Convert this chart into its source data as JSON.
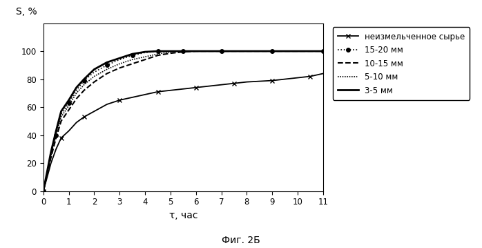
{
  "xlabel": "τ, час",
  "ylabel": "S, %",
  "caption": "Фиг. 2Б",
  "xlim": [
    0,
    11
  ],
  "ylim": [
    0,
    120
  ],
  "yticks": [
    0,
    20,
    40,
    60,
    80,
    100
  ],
  "xticks": [
    0,
    1,
    2,
    3,
    4,
    5,
    6,
    7,
    8,
    9,
    10,
    11
  ],
  "neizm_x": [
    0,
    0.3,
    0.5,
    0.7,
    1.0,
    1.3,
    1.6,
    2.0,
    2.5,
    3.0,
    3.5,
    4.0,
    4.5,
    5.0,
    5.5,
    6.0,
    6.5,
    7.0,
    7.5,
    8.0,
    8.5,
    9.0,
    9.5,
    10.0,
    10.5,
    11.0
  ],
  "neizm_y": [
    0,
    20,
    30,
    38,
    43,
    49,
    53,
    57,
    62,
    65,
    67,
    69,
    71,
    72,
    73,
    74,
    75,
    76,
    77,
    78,
    78.5,
    79,
    80,
    81,
    82,
    84
  ],
  "mm1520_x": [
    0,
    0.3,
    0.5,
    0.7,
    1.0,
    1.3,
    1.6,
    2.0,
    2.5,
    3.0,
    3.5,
    4.0,
    4.5,
    5.0,
    5.5,
    6.0,
    7.0,
    8.0,
    9.0,
    10.0,
    11.0
  ],
  "mm1520_y": [
    0,
    25,
    40,
    55,
    63,
    72,
    79,
    85,
    90,
    94,
    97,
    99,
    100,
    100,
    100,
    100,
    100,
    100,
    100,
    100,
    100
  ],
  "mm1015_x": [
    0,
    0.3,
    0.5,
    0.7,
    1.0,
    1.3,
    1.6,
    2.0,
    2.5,
    3.0,
    3.5,
    4.0,
    4.5,
    5.0,
    5.5,
    6.0,
    7.0,
    8.0,
    9.0,
    10.0,
    11.0
  ],
  "mm1015_y": [
    0,
    24,
    38,
    50,
    58,
    66,
    72,
    78,
    84,
    88,
    91,
    94,
    97,
    98.5,
    99.5,
    100,
    100,
    100,
    100,
    100,
    100
  ],
  "mm510_x": [
    0,
    0.3,
    0.5,
    0.7,
    1.0,
    1.3,
    1.6,
    2.0,
    2.5,
    3.0,
    3.5,
    4.0,
    4.5,
    5.0,
    5.5,
    6.0,
    7.0,
    8.0,
    9.0,
    10.0,
    11.0
  ],
  "mm510_y": [
    0,
    26,
    41,
    53,
    61,
    70,
    76,
    82,
    87,
    91,
    94,
    96,
    98,
    99.5,
    100,
    100,
    100,
    100,
    100,
    100,
    100
  ],
  "mm35_x": [
    0,
    0.3,
    0.5,
    0.7,
    1.0,
    1.3,
    1.6,
    2.0,
    2.5,
    3.0,
    3.5,
    4.0,
    4.5,
    5.0,
    6.0,
    7.0,
    8.0,
    9.0,
    10.0,
    11.0
  ],
  "mm35_y": [
    0,
    28,
    43,
    57,
    65,
    74,
    80,
    87,
    92,
    95,
    98,
    99.5,
    100,
    100,
    100,
    100,
    100,
    100,
    100,
    100
  ],
  "label_neizm": "неизмельченное сырье",
  "label_1520": "15-20 мм",
  "label_1015": "10-15 мм",
  "label_510": "5-10 мм",
  "label_35": "3-5 мм",
  "color": "#000000",
  "background_color": "#ffffff",
  "legend_fontsize": 8.5,
  "axis_fontsize": 10
}
